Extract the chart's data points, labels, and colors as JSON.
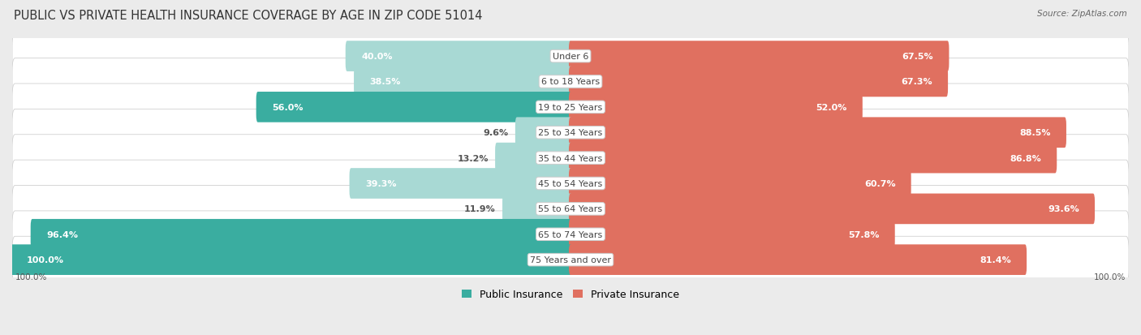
{
  "title": "PUBLIC VS PRIVATE HEALTH INSURANCE COVERAGE BY AGE IN ZIP CODE 51014",
  "source": "Source: ZipAtlas.com",
  "categories": [
    "Under 6",
    "6 to 18 Years",
    "19 to 25 Years",
    "25 to 34 Years",
    "35 to 44 Years",
    "45 to 54 Years",
    "55 to 64 Years",
    "65 to 74 Years",
    "75 Years and over"
  ],
  "public_values": [
    40.0,
    38.5,
    56.0,
    9.6,
    13.2,
    39.3,
    11.9,
    96.4,
    100.0
  ],
  "private_values": [
    67.5,
    67.3,
    52.0,
    88.5,
    86.8,
    60.7,
    93.6,
    57.8,
    81.4
  ],
  "pub_dark": "#3aada0",
  "pub_light": "#a8d9d4",
  "priv_dark": "#e07060",
  "priv_light": "#f0b0a8",
  "background_color": "#ebebeb",
  "row_color": "#f5f5f5",
  "row_alt_color": "#e8e8e8",
  "label_fontsize": 8.0,
  "category_fontsize": 8.0,
  "legend_fontsize": 9.0,
  "title_fontsize": 10.5
}
